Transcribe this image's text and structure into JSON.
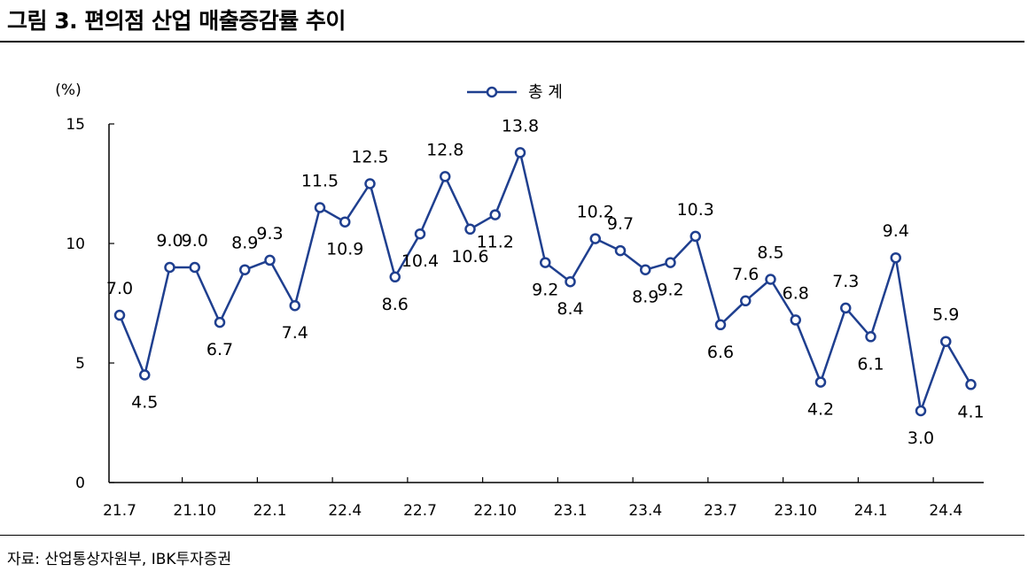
{
  "header": {
    "title": "그림 3. 편의점 산업 매출증감률 추이"
  },
  "footer": {
    "source": "자료: 산업통상자원부, IBK투자증권"
  },
  "chart_data": {
    "type": "line",
    "unit_label": "(%)",
    "ylim": [
      0,
      15
    ],
    "yticks": [
      0,
      5,
      10,
      15
    ],
    "xtick_labels": [
      "21.7",
      "21.10",
      "22.1",
      "22.4",
      "22.7",
      "22.10",
      "23.1",
      "23.4",
      "23.7",
      "23.10",
      "24.1",
      "24.4"
    ],
    "x": [
      "21.7",
      "21.8",
      "21.9",
      "21.10",
      "21.11",
      "21.12",
      "22.1",
      "22.2",
      "22.3",
      "22.4",
      "22.5",
      "22.6",
      "22.7",
      "22.8",
      "22.9",
      "22.10",
      "22.11",
      "22.12",
      "23.1",
      "23.2",
      "23.3",
      "23.4",
      "23.5",
      "23.6",
      "23.7",
      "23.8",
      "23.9",
      "23.10",
      "23.11",
      "23.12",
      "24.1",
      "24.2",
      "24.3",
      "24.4",
      "24.5"
    ],
    "legend_position": "top-center",
    "series": [
      {
        "name": "총 계",
        "color": "#1f3f8f",
        "values": [
          7.0,
          4.5,
          9.0,
          9.0,
          6.7,
          8.9,
          9.3,
          7.4,
          11.5,
          10.9,
          12.5,
          8.6,
          10.4,
          12.8,
          10.6,
          11.2,
          13.8,
          9.2,
          8.4,
          10.2,
          9.7,
          8.9,
          9.2,
          10.3,
          6.6,
          7.6,
          8.5,
          6.8,
          4.2,
          7.3,
          6.1,
          9.4,
          3.0,
          5.9,
          4.1
        ],
        "labels": [
          "7.0",
          "4.5",
          "9.0",
          "9.0",
          "6.7",
          "8.9",
          "9.3",
          "7.4",
          "11.5",
          "10.9",
          "12.5",
          "8.6",
          "10.4",
          "12.8",
          "10.6",
          "11.2",
          "13.8",
          "9.2",
          "8.4",
          "10.2",
          "9.7",
          "8.9",
          "9.2",
          "10.3",
          "6.6",
          "7.6",
          "8.5",
          "6.8",
          "4.2",
          "7.3",
          "6.1",
          "9.4",
          "3.0",
          "5.9",
          "4.1"
        ]
      }
    ]
  }
}
